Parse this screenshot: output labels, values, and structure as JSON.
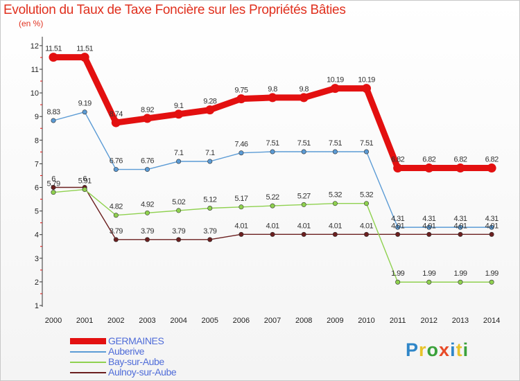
{
  "title": "Evolution du Taux de Taxe Foncière sur les Propriétés Bâties",
  "subtitle": "(en %)",
  "brand": {
    "letters": [
      "P",
      "r",
      "o",
      "x",
      "i",
      "t",
      "i"
    ],
    "colors": [
      "#2f86c8",
      "#e8c32a",
      "#3aa13a",
      "#e84b28",
      "#2f86c8",
      "#e8c32a",
      "#3aa13a"
    ]
  },
  "chart_data": {
    "type": "line",
    "title": "Evolution du Taux de Taxe Foncière sur les Propriétés Bâties",
    "ylabel": "(en %)",
    "xlabel": "",
    "ylim": [
      1,
      12
    ],
    "yticks": [
      "1",
      "2",
      "3",
      "4",
      "5",
      "6",
      "7",
      "8",
      "9",
      "10",
      "11",
      "12"
    ],
    "x": [
      "2000",
      "2001",
      "2002",
      "2003",
      "2004",
      "2005",
      "2006",
      "2007",
      "2008",
      "2009",
      "2010",
      "2011",
      "2012",
      "2013",
      "2014"
    ],
    "grid": false,
    "legend_position": "bottom-left",
    "series": [
      {
        "name": "GERMAINES",
        "color": "#e31010",
        "values": [
          11.51,
          11.51,
          8.74,
          8.92,
          9.1,
          9.28,
          9.75,
          9.8,
          9.8,
          10.19,
          10.19,
          6.82,
          6.82,
          6.82,
          6.82
        ],
        "labels": [
          "11.51",
          "11.51",
          "8.74",
          "8.92",
          "9.1",
          "9.28",
          "9.75",
          "9.8",
          "9.8",
          "10.19",
          "10.19",
          "6.82",
          "6.82",
          "6.82",
          "6.82"
        ]
      },
      {
        "name": "Auberive",
        "color": "#5b9bd5",
        "values": [
          8.83,
          9.19,
          6.76,
          6.76,
          7.1,
          7.1,
          7.46,
          7.51,
          7.51,
          7.51,
          7.51,
          4.31,
          4.31,
          4.31,
          4.31
        ],
        "labels": [
          "8.83",
          "9.19",
          "6.76",
          "6.76",
          "7.1",
          "7.1",
          "7.46",
          "7.51",
          "7.51",
          "7.51",
          "7.51",
          "4.31",
          "4.31",
          "4.31",
          "4.31"
        ]
      },
      {
        "name": "Bay-sur-Aube",
        "color": "#8fd14f",
        "values": [
          5.79,
          5.91,
          4.82,
          4.92,
          5.02,
          5.12,
          5.17,
          5.22,
          5.27,
          5.32,
          5.32,
          1.99,
          1.99,
          1.99,
          1.99
        ],
        "labels": [
          "5.79",
          "5.91",
          "4.82",
          "4.92",
          "5.02",
          "5.12",
          "5.17",
          "5.22",
          "5.27",
          "5.32",
          "5.32",
          "1.99",
          "1.99",
          "1.99",
          "1.99"
        ]
      },
      {
        "name": "Aulnoy-sur-Aube",
        "color": "#6b1f1f",
        "values": [
          6,
          6,
          3.79,
          3.79,
          3.79,
          3.79,
          4.01,
          4.01,
          4.01,
          4.01,
          4.01,
          4.01,
          4.01,
          4.01,
          4.01
        ],
        "labels": [
          "6",
          "6",
          "3.79",
          "3.79",
          "3.79",
          "3.79",
          "4.01",
          "4.01",
          "4.01",
          "4.01",
          "4.01",
          "4.01",
          "4.01",
          "4.01",
          "4.01"
        ]
      }
    ]
  }
}
